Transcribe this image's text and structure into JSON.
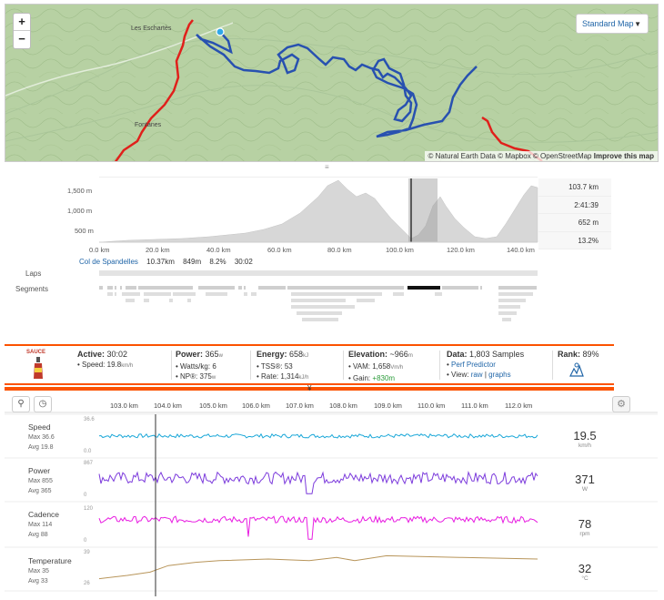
{
  "map": {
    "zoom_in": "+",
    "zoom_out": "−",
    "style_button": "Standard Map",
    "attribution_prefix": "© Natural Earth Data © Mapbox © OpenStreetMap",
    "attribution_link": "Improve this map",
    "place_1": "Les Eschartès",
    "place_2": "Fontanes"
  },
  "elevation": {
    "y_ticks": [
      "1,500 m",
      "1,000 m",
      "500 m"
    ],
    "x_ticks": [
      "0.0 km",
      "20.0 km",
      "40.0 km",
      "60.0 km",
      "80.0 km",
      "100.0 km",
      "120.0 km",
      "140.0 km"
    ],
    "stats": [
      "103.7 km",
      "2:41:39",
      "652 m",
      "13.2%"
    ],
    "segment_name": "Col de Spandelles",
    "segment_dist": "10.37km",
    "segment_elev": "849m",
    "segment_grade": "8.2%",
    "segment_time": "30:02",
    "laps_label": "Laps",
    "segments_label": "Segments"
  },
  "stats_bar": {
    "sauce_label": "SAUCE",
    "active_label": "Active:",
    "active_value": "30:02",
    "speed_label": "Speed:",
    "speed_value": "19.8",
    "speed_unit": "km/h",
    "power_label": "Power:",
    "power_value": "365",
    "power_unit": "w",
    "wkg_label": "Watts/kg:",
    "wkg_value": "6",
    "np_label": "NP®:",
    "np_value": "375",
    "np_unit": "w",
    "energy_label": "Energy:",
    "energy_value": "658",
    "energy_unit": "kJ",
    "tss_label": "TSS®:",
    "tss_value": "53",
    "rate_label": "Rate:",
    "rate_value": "1,314",
    "rate_unit": "kJ/h",
    "elev_label": "Elevation:",
    "elev_value": "~966",
    "elev_unit": "m",
    "vam_label": "VAM:",
    "vam_value": "1,658",
    "vam_unit": "Vm/h",
    "gain_label": "Gain:",
    "gain_value": "+830m",
    "data_label": "Data:",
    "data_value": "1,803 Samples",
    "perf_link": "Perf Predictor",
    "view_label": "View:",
    "view_raw": "raw",
    "view_sep": "|",
    "view_graphs": "graphs",
    "rank_label": "Rank:",
    "rank_value": "89%"
  },
  "streams": {
    "x_ticks": [
      "103.0 km",
      "104.0 km",
      "105.0 km",
      "106.0 km",
      "107.0 km",
      "108.0 km",
      "109.0 km",
      "110.0 km",
      "111.0 km",
      "112.0 km"
    ],
    "rows": [
      {
        "name": "Speed",
        "max": "Max 36.6",
        "avg": "Avg 19.8",
        "ymax": "36.6",
        "ymin": "0.0",
        "value": "19.5",
        "unit": "km/h",
        "color": "#1aa7d8"
      },
      {
        "name": "Power",
        "max": "Max 855",
        "avg": "Avg 365",
        "ymax": "867",
        "ymin": "0",
        "value": "371",
        "unit": "W",
        "color": "#7c3bdc"
      },
      {
        "name": "Cadence",
        "max": "Max 114",
        "avg": "Avg 88",
        "ymax": "120",
        "ymin": "0",
        "value": "78",
        "unit": "rpm",
        "color": "#e81ce1"
      },
      {
        "name": "Temperature",
        "max": "Max 35",
        "avg": "Avg 33",
        "ymax": "39",
        "ymin": "26",
        "value": "32",
        "unit": "°C",
        "color": "#b8955a"
      }
    ]
  }
}
